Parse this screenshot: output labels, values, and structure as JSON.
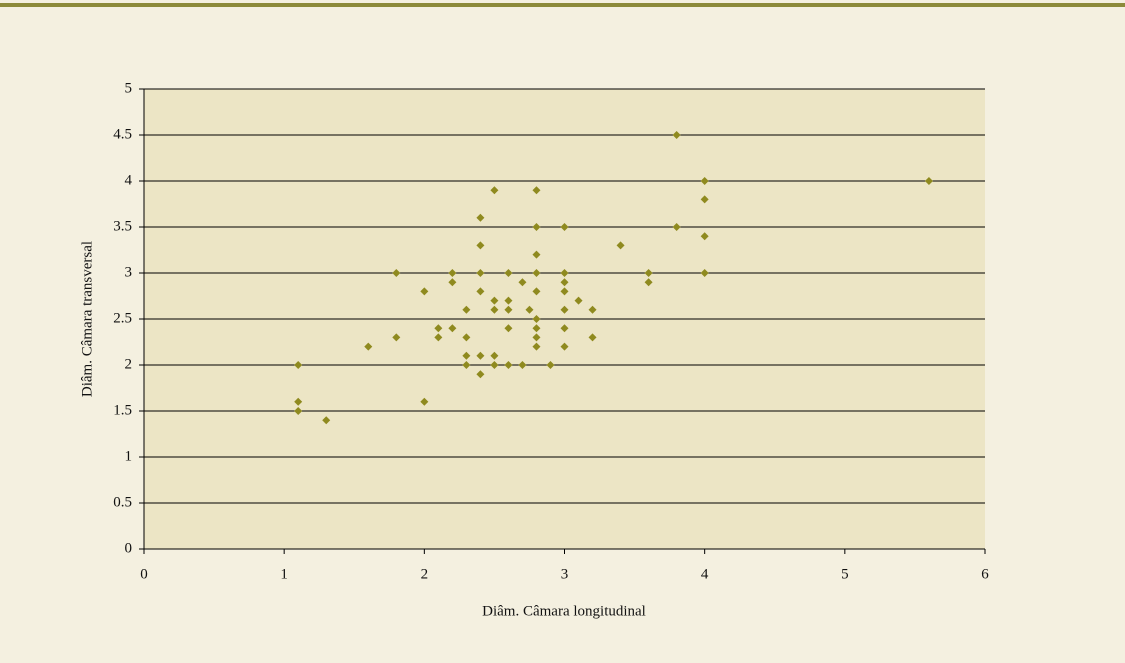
{
  "chart_data": {
    "type": "scatter",
    "x_label": "Diâm. Câmara longitudinal",
    "y_label": "Diâm. Câmara transversal",
    "color": "#8f8a1f",
    "x": [
      1.1,
      1.1,
      1.1,
      1.3,
      1.6,
      1.8,
      1.8,
      2.0,
      2.0,
      2.1,
      2.1,
      2.2,
      2.2,
      2.2,
      2.3,
      2.3,
      2.3,
      2.3,
      2.4,
      2.4,
      2.4,
      2.4,
      2.4,
      2.4,
      2.5,
      2.5,
      2.5,
      2.5,
      2.5,
      2.6,
      2.6,
      2.6,
      2.6,
      2.6,
      2.7,
      2.7,
      2.75,
      2.8,
      2.8,
      2.8,
      2.8,
      2.8,
      2.8,
      2.8,
      2.8,
      2.8,
      2.9,
      3.0,
      3.0,
      3.0,
      3.0,
      3.0,
      3.0,
      3.0,
      3.1,
      3.2,
      3.2,
      3.4,
      3.6,
      3.6,
      3.8,
      3.8,
      4.0,
      4.0,
      4.0,
      4.0,
      5.6
    ],
    "y": [
      2.0,
      1.6,
      1.5,
      1.4,
      2.2,
      3.0,
      2.3,
      2.8,
      1.6,
      2.4,
      2.3,
      3.0,
      2.9,
      2.4,
      2.6,
      2.3,
      2.1,
      2.0,
      3.6,
      3.3,
      3.0,
      2.8,
      2.1,
      1.9,
      3.9,
      2.7,
      2.6,
      2.1,
      2.0,
      3.0,
      2.7,
      2.6,
      2.4,
      2.0,
      2.9,
      2.0,
      2.6,
      3.9,
      3.5,
      3.2,
      3.0,
      2.8,
      2.5,
      2.4,
      2.3,
      2.2,
      2.0,
      3.5,
      3.0,
      2.9,
      2.8,
      2.6,
      2.4,
      2.2,
      2.7,
      2.6,
      2.3,
      3.3,
      3.0,
      2.9,
      4.5,
      3.5,
      4.0,
      3.8,
      3.4,
      3.0,
      4.0
    ],
    "xlim": [
      0,
      6
    ],
    "xticks": [
      0,
      1,
      2,
      3,
      4,
      5,
      6
    ],
    "ylim": [
      0,
      5
    ],
    "yticks": [
      0,
      0.5,
      1,
      1.5,
      2,
      2.5,
      3,
      3.5,
      4,
      4.5,
      5
    ],
    "grid": true
  }
}
